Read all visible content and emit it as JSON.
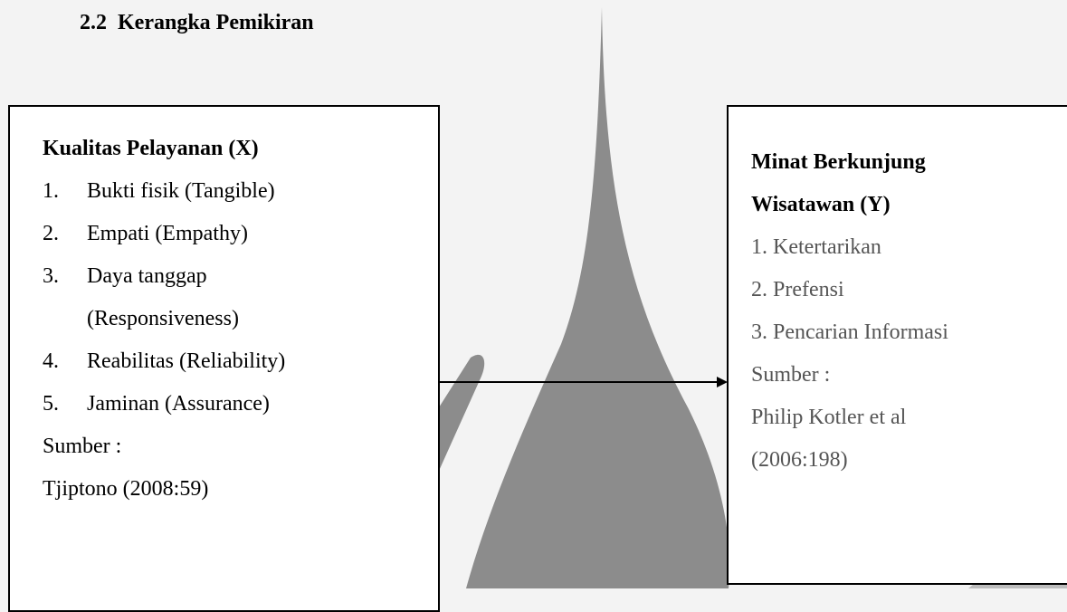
{
  "heading": {
    "number": "2.2",
    "text": "Kerangka Pemikiran"
  },
  "left_box": {
    "title": "Kualitas Pelayanan (X)",
    "items": [
      {
        "number": "1.",
        "text": "Bukti fisik (Tangible)"
      },
      {
        "number": "2.",
        "text": "Empati (Empathy)"
      },
      {
        "number": "3.",
        "text": "Daya tanggap (Responsiveness)"
      },
      {
        "number": "4.",
        "text": "Reabilitas (Reliability)"
      },
      {
        "number": "5.",
        "text": "Jaminan (Assurance)"
      }
    ],
    "source_label": "Sumber :",
    "source": "Tjiptono (2008:59)"
  },
  "right_box": {
    "title": "Minat Berkunjung Wisatawan (Y)",
    "items": [
      "1. Ketertarikan",
      "2. Prefensi",
      "3. Pencarian Informasi"
    ],
    "source_label": "Sumber :",
    "source": "Philip Kotler et al (2006:198)"
  }
}
